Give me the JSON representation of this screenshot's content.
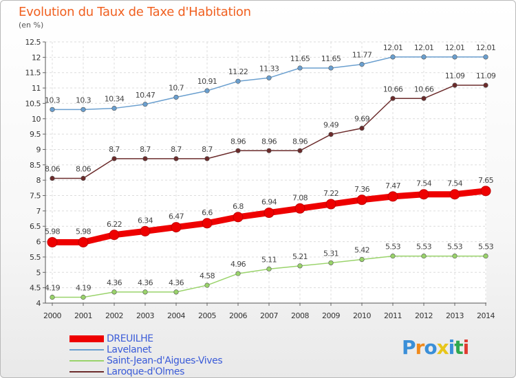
{
  "title": "Evolution du Taux de Taxe d'Habitation",
  "unit": "(en %)",
  "logo": {
    "text": "Proxiti"
  },
  "chart_data": {
    "type": "line",
    "title": "Evolution du Taux de Taxe d'Habitation",
    "ylabel": "(en %)",
    "xlabel": "",
    "ylim": [
      4,
      12.5
    ],
    "yticks": [
      "4",
      "4.5",
      "5",
      "5.5",
      "6",
      "6.5",
      "7",
      "7.5",
      "8",
      "8.5",
      "9",
      "9.5",
      "10",
      "10.5",
      "11",
      "11.5",
      "12",
      "12.5"
    ],
    "x": [
      "2000",
      "2001",
      "2002",
      "2003",
      "2004",
      "2005",
      "2006",
      "2007",
      "2008",
      "2009",
      "2010",
      "2011",
      "2012",
      "2013",
      "2014"
    ],
    "grid": true,
    "legend": "bottom-left",
    "series": [
      {
        "name": "DREUILHE",
        "color": "#ee0000",
        "values": [
          5.98,
          5.98,
          6.22,
          6.34,
          6.47,
          6.6,
          6.8,
          6.94,
          7.08,
          7.22,
          7.36,
          7.47,
          7.54,
          7.54,
          7.65
        ],
        "labels": [
          "5.98",
          "5.98",
          "6.22",
          "6.34",
          "6.47",
          "6.6",
          "6.8",
          "6.94",
          "7.08",
          "7.22",
          "7.36",
          "7.47",
          "7.54",
          "7.54",
          "7.65"
        ]
      },
      {
        "name": "Lavelanet",
        "color": "#6a9fcf",
        "values": [
          10.3,
          10.3,
          10.34,
          10.47,
          10.7,
          10.91,
          11.22,
          11.33,
          11.65,
          11.65,
          11.77,
          12.01,
          12.01,
          12.01,
          12.01
        ],
        "labels": [
          "10.3",
          "10.3",
          "10.34",
          "10.47",
          "10.7",
          "10.91",
          "11.22",
          "11.33",
          "11.65",
          "11.65",
          "11.77",
          "12.01",
          "12.01",
          "12.01",
          "12.01"
        ]
      },
      {
        "name": "Saint-Jean-d'Aigues-Vives",
        "color": "#99d36a",
        "values": [
          4.19,
          4.19,
          4.36,
          4.36,
          4.36,
          4.58,
          4.96,
          5.11,
          5.21,
          5.31,
          5.42,
          5.53,
          5.53,
          5.53,
          5.53
        ],
        "labels": [
          "4.19",
          "4.19",
          "4.36",
          "4.36",
          "4.36",
          "4.58",
          "4.96",
          "5.11",
          "5.21",
          "5.31",
          "5.42",
          "5.53",
          "5.53",
          "5.53",
          "5.53"
        ]
      },
      {
        "name": "Laroque-d'Olmes",
        "color": "#6b2b2b",
        "values": [
          8.06,
          8.06,
          8.7,
          8.7,
          8.7,
          8.7,
          8.96,
          8.96,
          8.96,
          9.49,
          9.69,
          10.66,
          10.66,
          11.09,
          11.09
        ],
        "labels": [
          "8.06",
          "8.06",
          "8.7",
          "8.7",
          "8.7",
          "8.7",
          "8.96",
          "8.96",
          "8.96",
          "9.49",
          "9.69",
          "10.66",
          "10.66",
          "11.09",
          "11.09"
        ]
      }
    ]
  }
}
